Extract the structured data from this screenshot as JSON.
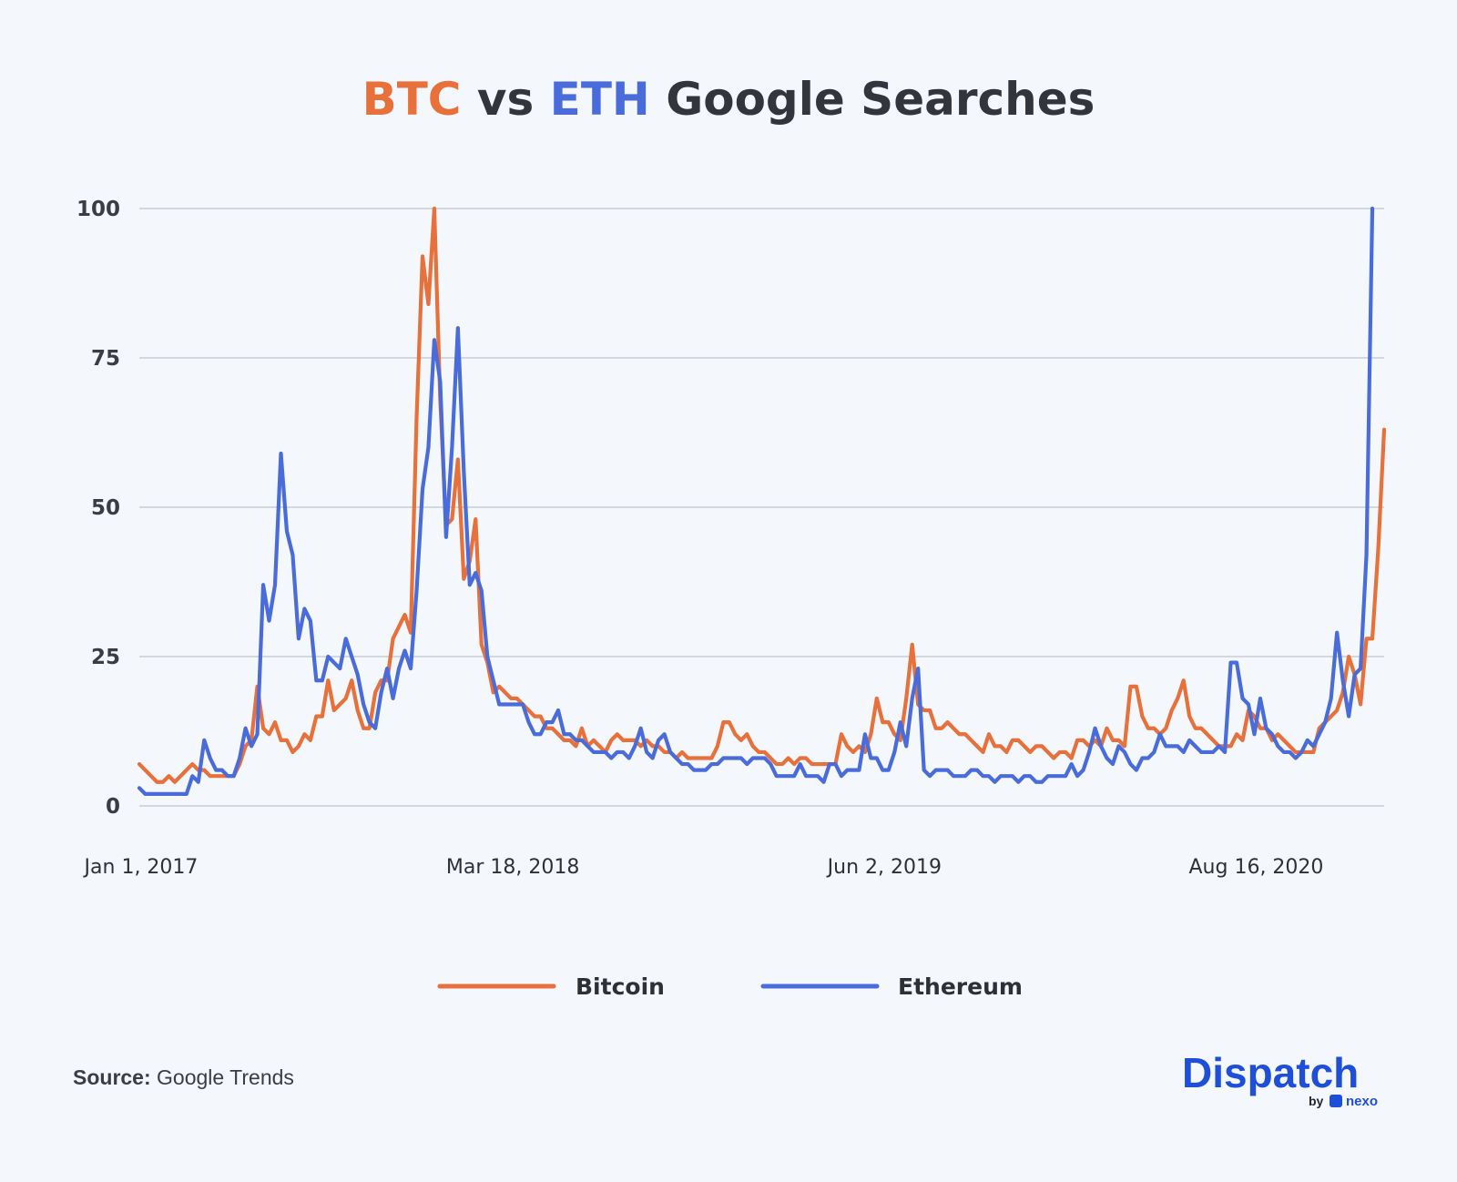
{
  "title": {
    "part1": "BTC",
    "part2": " vs ",
    "part3": "ETH",
    "part4": " Google Searches"
  },
  "colors": {
    "bitcoin": "#e8703a",
    "ethereum": "#4a6cdb",
    "text": "#33353c",
    "grid": "#bfc4cc"
  },
  "source": {
    "label": "Source:",
    "value": "Google Trends"
  },
  "logo": {
    "brand": "Dispatch",
    "by": "by",
    "sub": "nexo"
  },
  "chart_data": {
    "type": "line",
    "title": "BTC vs ETH Google Searches",
    "ylim": [
      0,
      100
    ],
    "yticks": [
      0,
      25,
      50,
      75,
      100
    ],
    "xtick_labels": [
      "Jan 1, 2017",
      "Mar 18, 2018",
      "Jun 2, 2019",
      "Aug 16, 2020"
    ],
    "x_start": "2017-01-01",
    "x_interval": "weekly",
    "grid": true,
    "legend_position": "bottom",
    "series": [
      {
        "name": "Bitcoin",
        "color": "#e8703a",
        "values": [
          7,
          6,
          5,
          4,
          4,
          5,
          4,
          5,
          6,
          7,
          6,
          6,
          5,
          5,
          5,
          5,
          5,
          7,
          10,
          11,
          20,
          13,
          12,
          14,
          11,
          11,
          9,
          10,
          12,
          11,
          15,
          15,
          21,
          16,
          17,
          18,
          21,
          16,
          13,
          13,
          19,
          21,
          21,
          28,
          30,
          32,
          29,
          65,
          92,
          84,
          100,
          68,
          47,
          48,
          58,
          38,
          41,
          48,
          27,
          24,
          19,
          20,
          19,
          18,
          18,
          17,
          16,
          15,
          15,
          13,
          13,
          12,
          11,
          11,
          10,
          13,
          10,
          11,
          10,
          9,
          11,
          12,
          11,
          11,
          11,
          10,
          11,
          10,
          10,
          9,
          9,
          8,
          9,
          8,
          8,
          8,
          8,
          8,
          10,
          14,
          14,
          12,
          11,
          12,
          10,
          9,
          9,
          8,
          7,
          7,
          8,
          7,
          8,
          8,
          7,
          7,
          7,
          7,
          7,
          12,
          10,
          9,
          10,
          9,
          12,
          18,
          14,
          14,
          12,
          11,
          18,
          27,
          17,
          16,
          16,
          13,
          13,
          14,
          13,
          12,
          12,
          11,
          10,
          9,
          12,
          10,
          10,
          9,
          11,
          11,
          10,
          9,
          10,
          10,
          9,
          8,
          9,
          9,
          8,
          11,
          11,
          10,
          11,
          10,
          13,
          11,
          11,
          10,
          20,
          20,
          15,
          13,
          13,
          12,
          13,
          16,
          18,
          21,
          15,
          13,
          13,
          12,
          11,
          10,
          10,
          10,
          12,
          11,
          16,
          15,
          13,
          13,
          11,
          12,
          11,
          10,
          9,
          9,
          9,
          9,
          13,
          14,
          15,
          16,
          19,
          25,
          22,
          17,
          28,
          28,
          43,
          63
        ]
      },
      {
        "name": "Ethereum",
        "color": "#4a6cdb",
        "values": [
          3,
          2,
          2,
          2,
          2,
          2,
          2,
          2,
          2,
          5,
          4,
          11,
          8,
          6,
          6,
          5,
          5,
          8,
          13,
          10,
          12,
          37,
          31,
          37,
          59,
          46,
          42,
          28,
          33,
          31,
          21,
          21,
          25,
          24,
          23,
          28,
          25,
          22,
          17,
          14,
          13,
          19,
          23,
          18,
          23,
          26,
          23,
          36,
          53,
          60,
          78,
          71,
          45,
          60,
          80,
          56,
          37,
          39,
          36,
          25,
          21,
          17,
          17,
          17,
          17,
          17,
          14,
          12,
          12,
          14,
          14,
          16,
          12,
          12,
          11,
          11,
          10,
          9,
          9,
          9,
          8,
          9,
          9,
          8,
          10,
          13,
          9,
          8,
          11,
          12,
          9,
          8,
          7,
          7,
          6,
          6,
          6,
          7,
          7,
          8,
          8,
          8,
          8,
          7,
          8,
          8,
          8,
          7,
          5,
          5,
          5,
          5,
          7,
          5,
          5,
          5,
          4,
          7,
          7,
          5,
          6,
          6,
          6,
          12,
          8,
          8,
          6,
          6,
          9,
          14,
          10,
          18,
          23,
          6,
          5,
          6,
          6,
          6,
          5,
          5,
          5,
          6,
          6,
          5,
          5,
          4,
          5,
          5,
          5,
          4,
          5,
          5,
          4,
          4,
          5,
          5,
          5,
          5,
          7,
          5,
          6,
          9,
          13,
          10,
          8,
          7,
          10,
          9,
          7,
          6,
          8,
          8,
          9,
          12,
          10,
          10,
          10,
          9,
          11,
          10,
          9,
          9,
          9,
          10,
          9,
          24,
          24,
          18,
          17,
          12,
          18,
          13,
          12,
          10,
          9,
          9,
          8,
          9,
          11,
          10,
          12,
          14,
          18,
          29,
          21,
          15,
          22,
          23,
          42,
          100
        ]
      }
    ]
  }
}
